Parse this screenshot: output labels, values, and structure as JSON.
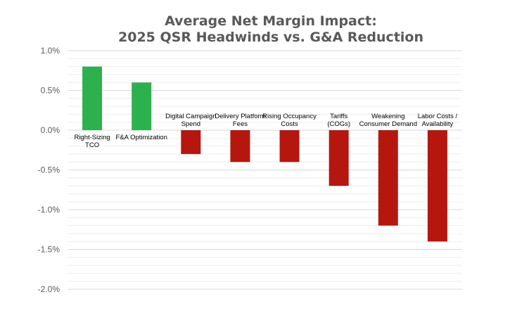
{
  "chart_data": {
    "type": "bar",
    "title": [
      "Average Net Margin Impact:",
      "2025 QSR Headwinds vs. G&A Reduction"
    ],
    "xlabel": "",
    "ylabel": "",
    "ylim": [
      -2.0,
      1.0
    ],
    "y_major_step": 0.5,
    "y_minor_step": 0.1,
    "y_tick_suffix": "%",
    "grid": true,
    "legend": "none",
    "colors": {
      "positive": "#2db14e",
      "negative": "#b5170f"
    },
    "categories": [
      [
        "Right-Sizing",
        "TCO"
      ],
      [
        "F&A Optimization"
      ],
      [
        "Digital Campaign",
        "Spend"
      ],
      [
        "Delivery Platform",
        "Fees"
      ],
      [
        "Rising Occupancy",
        "Costs"
      ],
      [
        "Tariffs",
        "(COGs)"
      ],
      [
        "Weakening",
        "Consumer Demand"
      ],
      [
        "Labor Costs /",
        "Availability"
      ]
    ],
    "values": [
      0.8,
      0.6,
      -0.3,
      -0.4,
      -0.4,
      -0.7,
      -1.2,
      -1.4
    ]
  }
}
